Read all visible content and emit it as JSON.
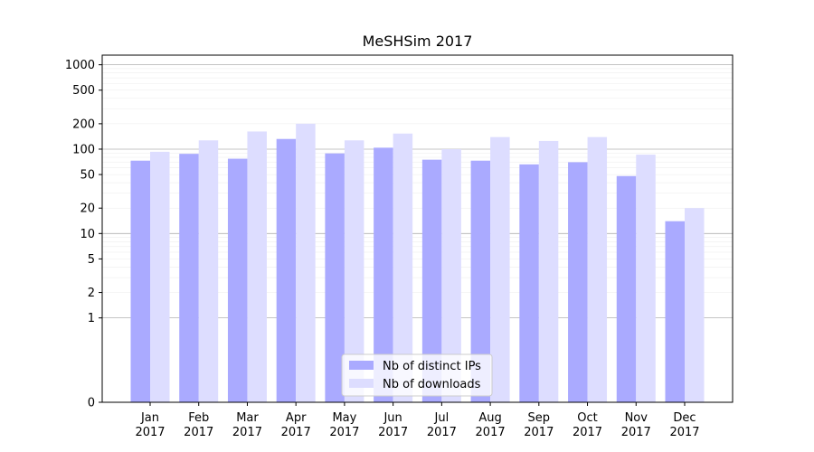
{
  "chart_data": {
    "type": "bar",
    "title": "MeSHSim 2017",
    "xlabel": "",
    "ylabel": "",
    "y_scale": "symlog",
    "ylim": [
      0,
      1300
    ],
    "y_ticks": [
      0,
      1,
      2,
      5,
      10,
      20,
      50,
      100,
      200,
      500,
      1000
    ],
    "y_tick_labels": [
      "0",
      "1",
      "2",
      "5",
      "10",
      "20",
      "50",
      "100",
      "200",
      "500",
      "1000"
    ],
    "categories": [
      [
        "Jan",
        "2017"
      ],
      [
        "Feb",
        "2017"
      ],
      [
        "Mar",
        "2017"
      ],
      [
        "Apr",
        "2017"
      ],
      [
        "May",
        "2017"
      ],
      [
        "Jun",
        "2017"
      ],
      [
        "Jul",
        "2017"
      ],
      [
        "Aug",
        "2017"
      ],
      [
        "Sep",
        "2017"
      ],
      [
        "Oct",
        "2017"
      ],
      [
        "Nov",
        "2017"
      ],
      [
        "Dec",
        "2017"
      ]
    ],
    "series": [
      {
        "name": "Nb of distinct IPs",
        "color": "#aaaaff",
        "values": [
          73,
          88,
          77,
          132,
          89,
          104,
          75,
          73,
          66,
          70,
          48,
          14
        ]
      },
      {
        "name": "Nb of downloads",
        "color": "#ddddff",
        "values": [
          93,
          127,
          162,
          200,
          127,
          153,
          100,
          139,
          125,
          139,
          86,
          20
        ]
      }
    ],
    "legend_position": "lower-center",
    "grid": "y"
  }
}
